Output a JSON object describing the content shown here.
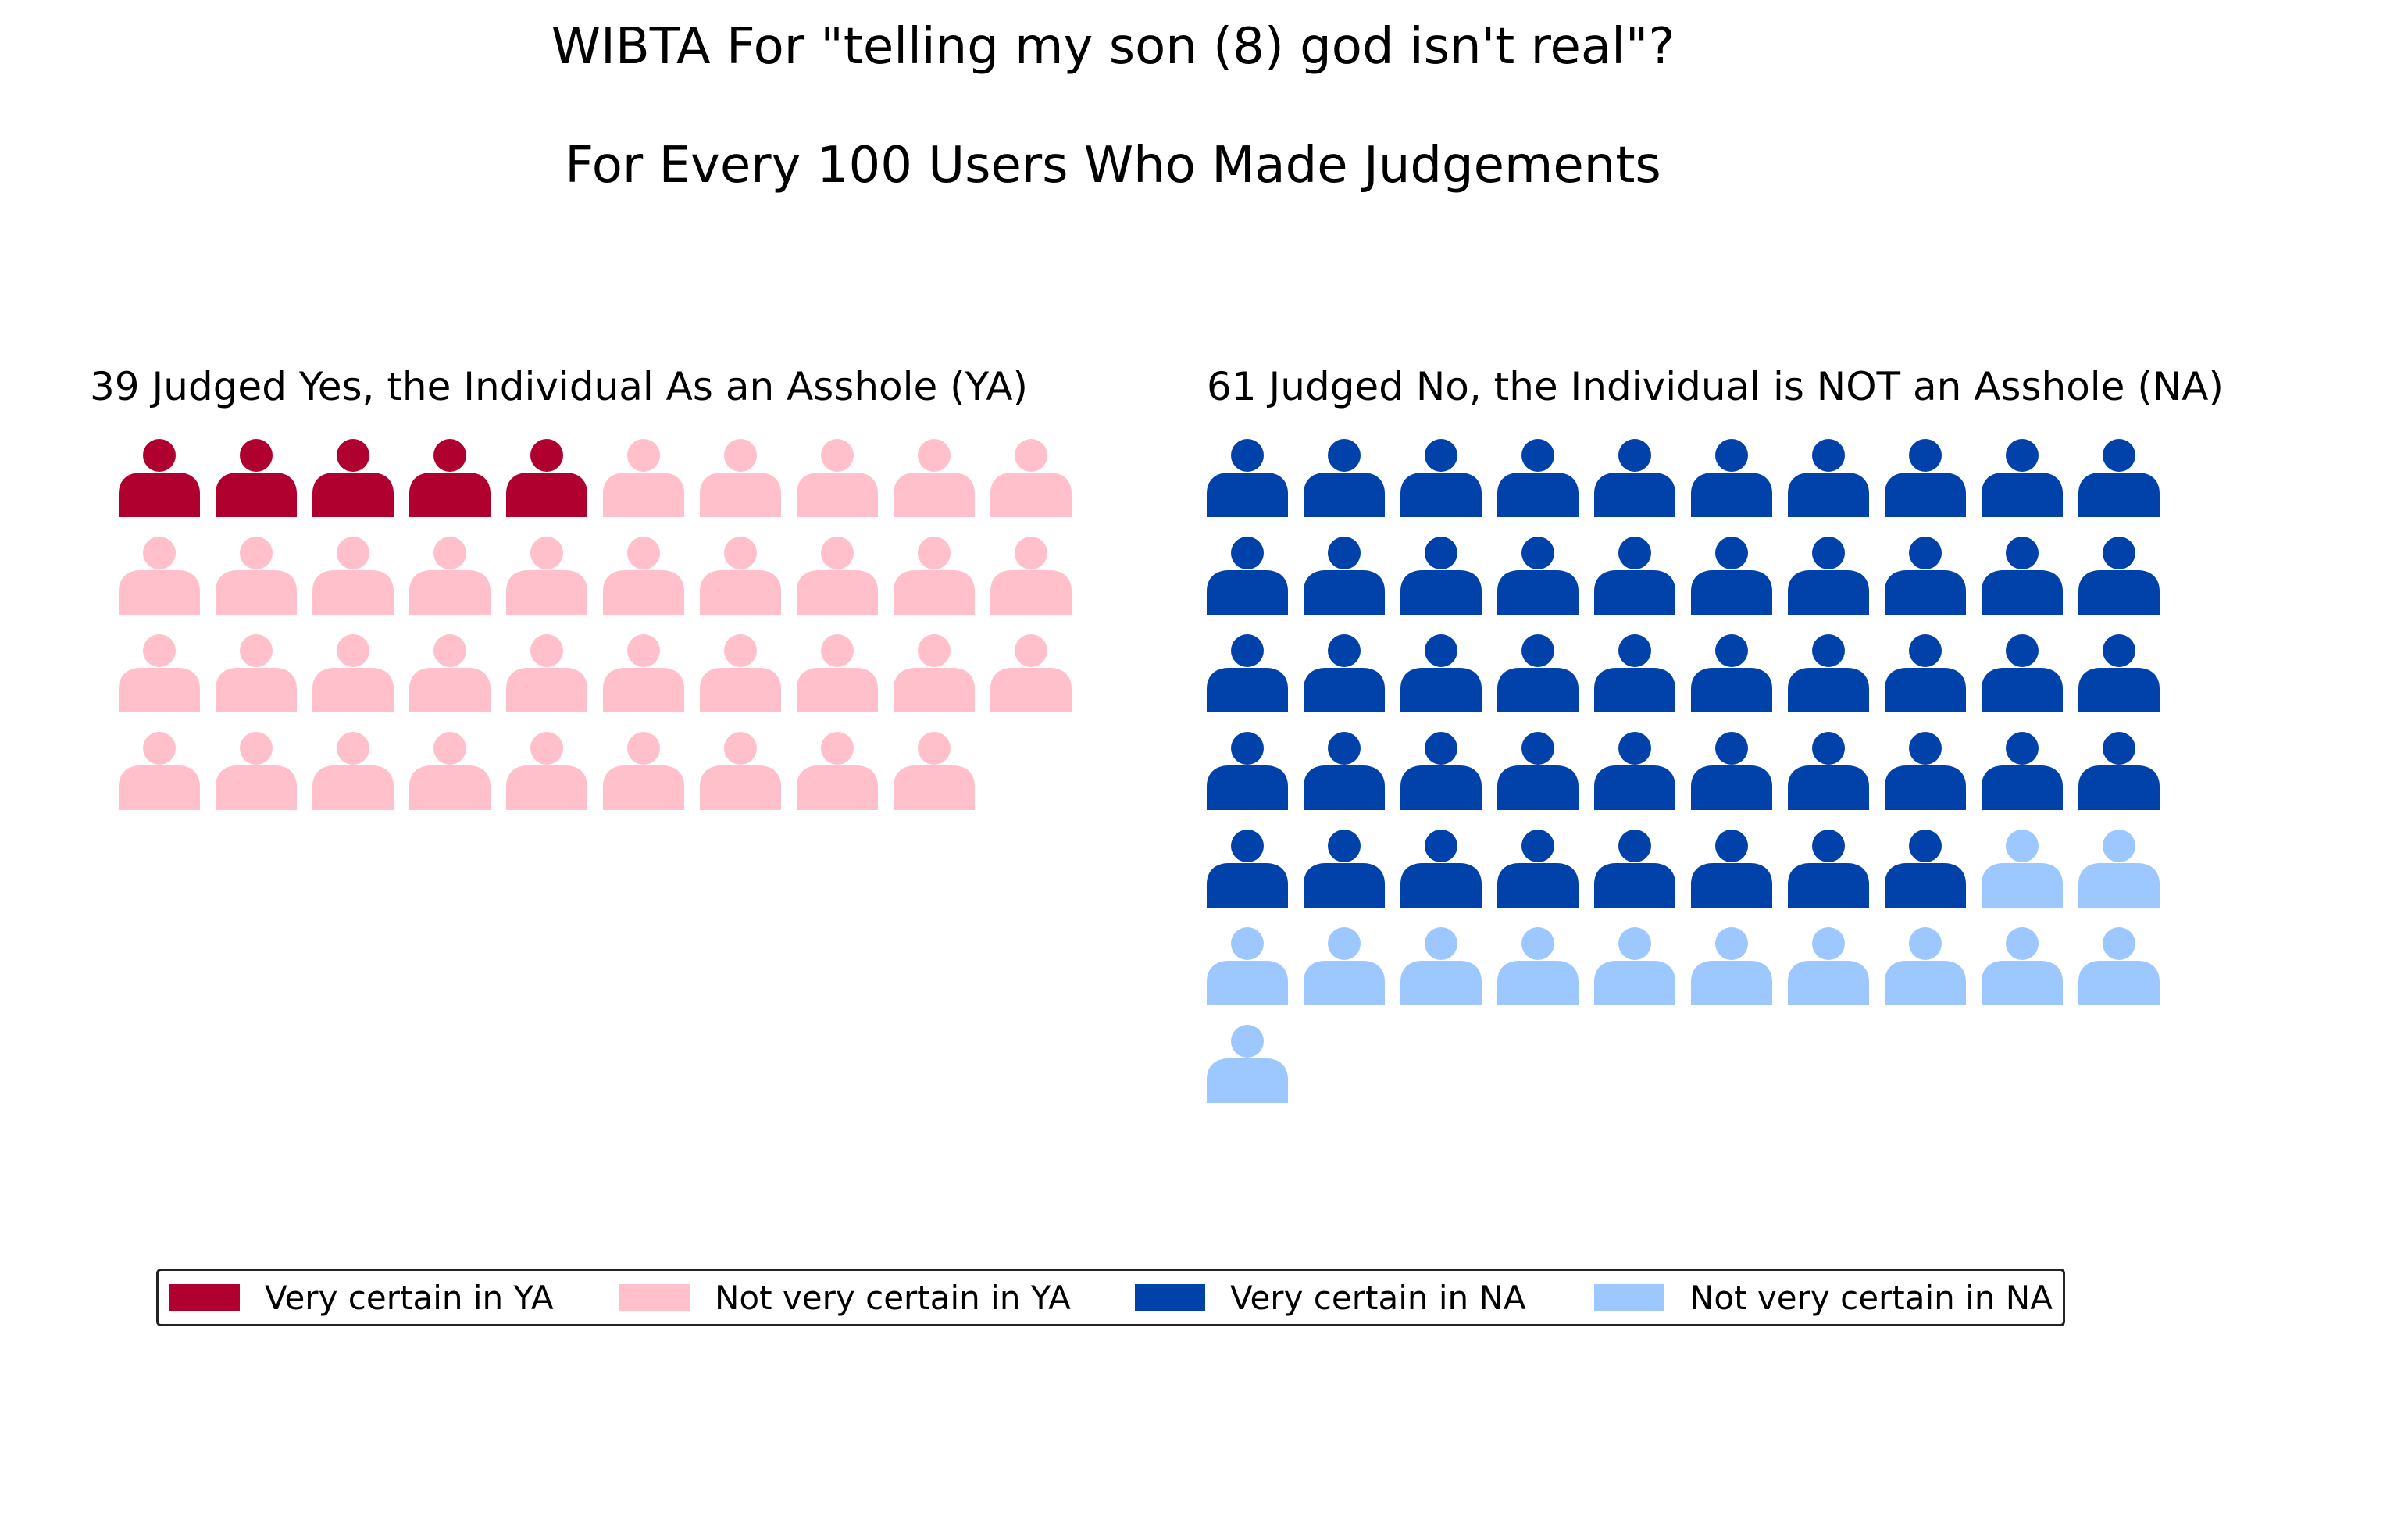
{
  "title": "WIBTA For \"telling my son (8) god isn't real\"?",
  "subtitle": "For Every 100 Users Who Made Judgements",
  "chart_data": {
    "type": "pictograph",
    "total": 100,
    "panels": [
      {
        "title": "39 Judged Yes, the Individual As an Asshole (YA)",
        "total": 39,
        "columns": 10,
        "segments": [
          {
            "name": "Very certain in YA",
            "count": 5,
            "color": "#b00030"
          },
          {
            "name": "Not very certain in YA",
            "count": 34,
            "color": "#ffc0cb"
          }
        ]
      },
      {
        "title": "61 Judged No, the Individual is NOT an Asshole (NA)",
        "total": 61,
        "columns": 10,
        "segments": [
          {
            "name": "Very certain in NA",
            "count": 48,
            "color": "#0042aa"
          },
          {
            "name": "Not very certain in NA",
            "count": 13,
            "color": "#9dc8ff"
          }
        ]
      }
    ],
    "legend": {
      "placement": "bottom",
      "items": [
        {
          "label": "Very certain in YA",
          "color": "#b00030"
        },
        {
          "label": "Not very certain in YA",
          "color": "#ffc0cb"
        },
        {
          "label": "Very certain in NA",
          "color": "#0042aa"
        },
        {
          "label": "Not very certain in NA",
          "color": "#9dc8ff"
        }
      ]
    },
    "icon": "person-icon"
  }
}
